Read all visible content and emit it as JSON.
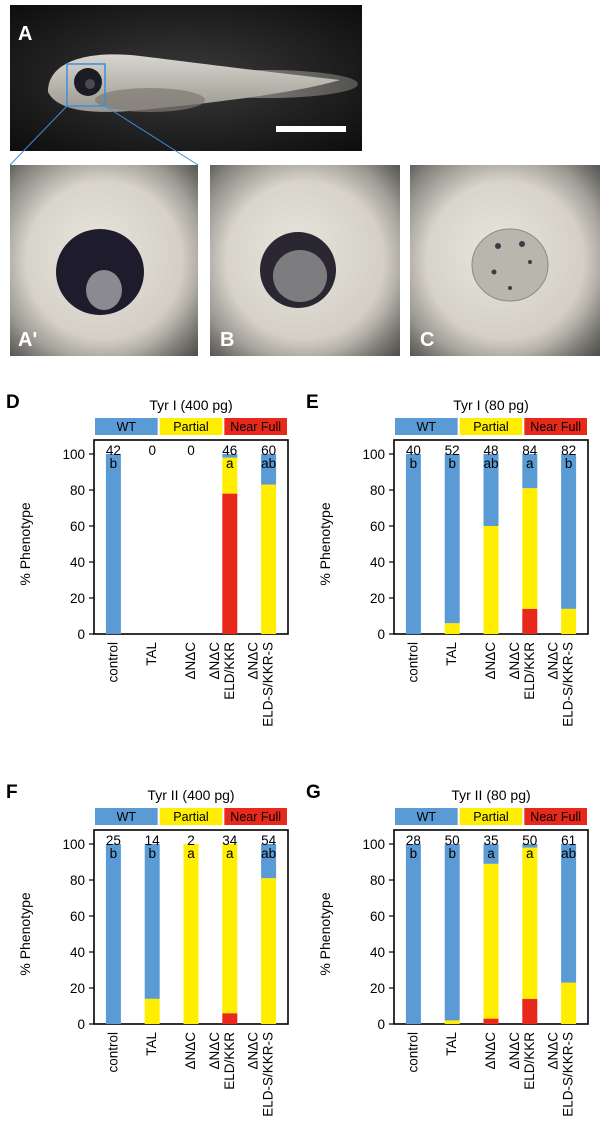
{
  "photos": {
    "panel_labels": [
      "A",
      "A'",
      "B",
      "C"
    ],
    "scale_bar": true
  },
  "legend": {
    "wt": "WT",
    "partial": "Partial",
    "near_full": "Near Full"
  },
  "colors": {
    "wt": "#5b9bd5",
    "partial": "#ffee00",
    "near_full": "#e8281a"
  },
  "chart_data": [
    {
      "panel": "D",
      "type": "bar",
      "stacked": true,
      "title": "Tyr I (400 pg)",
      "ylabel": "% Phenotype",
      "ylim": [
        0,
        100
      ],
      "yticks": [
        0,
        20,
        40,
        60,
        80,
        100
      ],
      "categories": [
        "control",
        "TAL",
        "ΔNΔC",
        "ΔNΔC ELD/KKR",
        "ΔNΔC ELD-S/KKR-S"
      ],
      "category_lines": [
        [
          "control"
        ],
        [
          "TAL"
        ],
        [
          "ΔNΔC"
        ],
        [
          "ΔNΔC",
          "ELD/KKR"
        ],
        [
          "ΔNΔC",
          "ELD-S/KKR-S"
        ]
      ],
      "n": [
        "42",
        "0",
        "0",
        "46",
        "60"
      ],
      "stats": [
        "b",
        "",
        "",
        "a",
        "ab"
      ],
      "series": [
        {
          "name": "Near Full",
          "key": "near_full",
          "values": [
            0,
            0,
            0,
            78,
            0
          ]
        },
        {
          "name": "Partial",
          "key": "partial",
          "values": [
            0,
            0,
            0,
            20,
            83
          ]
        },
        {
          "name": "WT",
          "key": "wt",
          "values": [
            100,
            0,
            0,
            2,
            17
          ]
        }
      ]
    },
    {
      "panel": "E",
      "type": "bar",
      "stacked": true,
      "title": "Tyr I (80 pg)",
      "ylabel": "% Phenotype",
      "ylim": [
        0,
        100
      ],
      "yticks": [
        0,
        20,
        40,
        60,
        80,
        100
      ],
      "categories": [
        "control",
        "TAL",
        "ΔNΔC",
        "ΔNΔC ELD/KKR",
        "ΔNΔC ELD-S/KKR-S"
      ],
      "category_lines": [
        [
          "control"
        ],
        [
          "TAL"
        ],
        [
          "ΔNΔC"
        ],
        [
          "ΔNΔC",
          "ELD/KKR"
        ],
        [
          "ΔNΔC",
          "ELD-S/KKR-S"
        ]
      ],
      "n": [
        "40",
        "52",
        "48",
        "84",
        "82"
      ],
      "stats": [
        "b",
        "b",
        "ab",
        "a",
        "b"
      ],
      "series": [
        {
          "name": "Near Full",
          "key": "near_full",
          "values": [
            0,
            0,
            0,
            14,
            0
          ]
        },
        {
          "name": "Partial",
          "key": "partial",
          "values": [
            0,
            6,
            60,
            67,
            14
          ]
        },
        {
          "name": "WT",
          "key": "wt",
          "values": [
            100,
            94,
            40,
            19,
            86
          ]
        }
      ]
    },
    {
      "panel": "F",
      "type": "bar",
      "stacked": true,
      "title": "Tyr II (400 pg)",
      "ylabel": "% Phenotype",
      "ylim": [
        0,
        100
      ],
      "yticks": [
        0,
        20,
        40,
        60,
        80,
        100
      ],
      "categories": [
        "control",
        "TAL",
        "ΔNΔC",
        "ΔNΔC ELD/KKR",
        "ΔNΔC ELD-S/KKR-S"
      ],
      "category_lines": [
        [
          "control"
        ],
        [
          "TAL"
        ],
        [
          "ΔNΔC"
        ],
        [
          "ΔNΔC",
          "ELD/KKR"
        ],
        [
          "ΔNΔC",
          "ELD-S/KKR-S"
        ]
      ],
      "n": [
        "25",
        "14",
        "2",
        "34",
        "54"
      ],
      "stats": [
        "b",
        "b",
        "a",
        "a",
        "ab"
      ],
      "series": [
        {
          "name": "Near Full",
          "key": "near_full",
          "values": [
            0,
            0,
            0,
            6,
            0
          ]
        },
        {
          "name": "Partial",
          "key": "partial",
          "values": [
            0,
            14,
            100,
            94,
            81
          ]
        },
        {
          "name": "WT",
          "key": "wt",
          "values": [
            100,
            86,
            0,
            0,
            19
          ]
        }
      ]
    },
    {
      "panel": "G",
      "type": "bar",
      "stacked": true,
      "title": "Tyr II (80 pg)",
      "ylabel": "% Phenotype",
      "ylim": [
        0,
        100
      ],
      "yticks": [
        0,
        20,
        40,
        60,
        80,
        100
      ],
      "categories": [
        "control",
        "TAL",
        "ΔNΔC",
        "ΔNΔC ELD/KKR",
        "ΔNΔC ELD-S/KKR-S"
      ],
      "category_lines": [
        [
          "control"
        ],
        [
          "TAL"
        ],
        [
          "ΔNΔC"
        ],
        [
          "ΔNΔC",
          "ELD/KKR"
        ],
        [
          "ΔNΔC",
          "ELD-S/KKR-S"
        ]
      ],
      "n": [
        "28",
        "50",
        "35",
        "50",
        "61"
      ],
      "stats": [
        "b",
        "b",
        "a",
        "a",
        "ab"
      ],
      "series": [
        {
          "name": "Near Full",
          "key": "near_full",
          "values": [
            0,
            0,
            3,
            14,
            0
          ]
        },
        {
          "name": "Partial",
          "key": "partial",
          "values": [
            0,
            2,
            86,
            84,
            23
          ]
        },
        {
          "name": "WT",
          "key": "wt",
          "values": [
            100,
            98,
            11,
            2,
            77
          ]
        }
      ]
    }
  ]
}
